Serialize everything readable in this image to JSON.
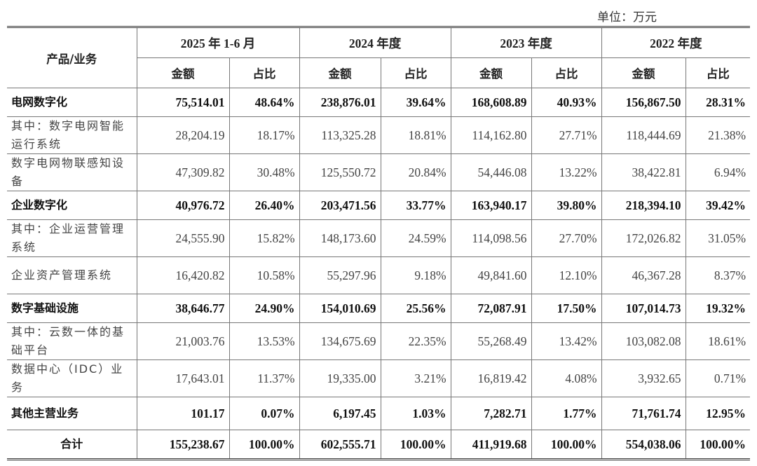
{
  "unit_label": "单位：万元",
  "header": {
    "product_col": "产品/业务",
    "periods": [
      "2025 年 1-6 月",
      "2024 年度",
      "2023 年度",
      "2022 年度"
    ],
    "amount_label": "金额",
    "ratio_label": "占比"
  },
  "rows": [
    {
      "type": "bold",
      "name": "电网数字化",
      "values": [
        "75,514.01",
        "48.64%",
        "238,876.01",
        "39.64%",
        "168,608.89",
        "40.93%",
        "156,867.50",
        "28.31%"
      ]
    },
    {
      "type": "sub",
      "name": "其中：数字电网智能运行系统",
      "values": [
        "28,204.19",
        "18.17%",
        "113,325.28",
        "18.81%",
        "114,162.80",
        "27.71%",
        "118,444.69",
        "21.38%"
      ]
    },
    {
      "type": "sub",
      "name": "数字电网物联感知设备",
      "values": [
        "47,309.82",
        "30.48%",
        "125,550.72",
        "20.84%",
        "54,446.08",
        "13.22%",
        "38,422.81",
        "6.94%"
      ]
    },
    {
      "type": "bold",
      "name": "企业数字化",
      "values": [
        "40,976.72",
        "26.40%",
        "203,471.56",
        "33.77%",
        "163,940.17",
        "39.80%",
        "218,394.10",
        "39.42%"
      ]
    },
    {
      "type": "sub",
      "name": "其中：企业运营管理系统",
      "values": [
        "24,555.90",
        "15.82%",
        "148,173.60",
        "24.59%",
        "114,098.56",
        "27.70%",
        "172,026.82",
        "31.05%"
      ]
    },
    {
      "type": "sub",
      "name": "企业资产管理系统",
      "values": [
        "16,420.82",
        "10.58%",
        "55,297.96",
        "9.18%",
        "49,841.60",
        "12.10%",
        "46,367.28",
        "8.37%"
      ]
    },
    {
      "type": "bold",
      "name": "数字基础设施",
      "values": [
        "38,646.77",
        "24.90%",
        "154,010.69",
        "25.56%",
        "72,087.91",
        "17.50%",
        "107,014.73",
        "19.32%"
      ]
    },
    {
      "type": "sub",
      "name": "其中：云数一体的基础平台",
      "values": [
        "21,003.76",
        "13.53%",
        "134,675.69",
        "22.35%",
        "55,268.49",
        "13.42%",
        "103,082.08",
        "18.61%"
      ]
    },
    {
      "type": "sub",
      "name": "数据中心（IDC）业务",
      "values": [
        "17,643.01",
        "11.37%",
        "19,335.00",
        "3.21%",
        "16,819.42",
        "4.08%",
        "3,932.65",
        "0.71%"
      ]
    },
    {
      "type": "bold other",
      "name": "其他主营业务",
      "values": [
        "101.17",
        "0.07%",
        "6,197.45",
        "1.03%",
        "7,282.71",
        "1.77%",
        "71,761.74",
        "12.95%"
      ]
    },
    {
      "type": "bold total",
      "name": "合计",
      "values": [
        "155,238.67",
        "100.00%",
        "602,555.71",
        "100.00%",
        "411,919.68",
        "100.00%",
        "554,038.06",
        "100.00%"
      ]
    }
  ]
}
